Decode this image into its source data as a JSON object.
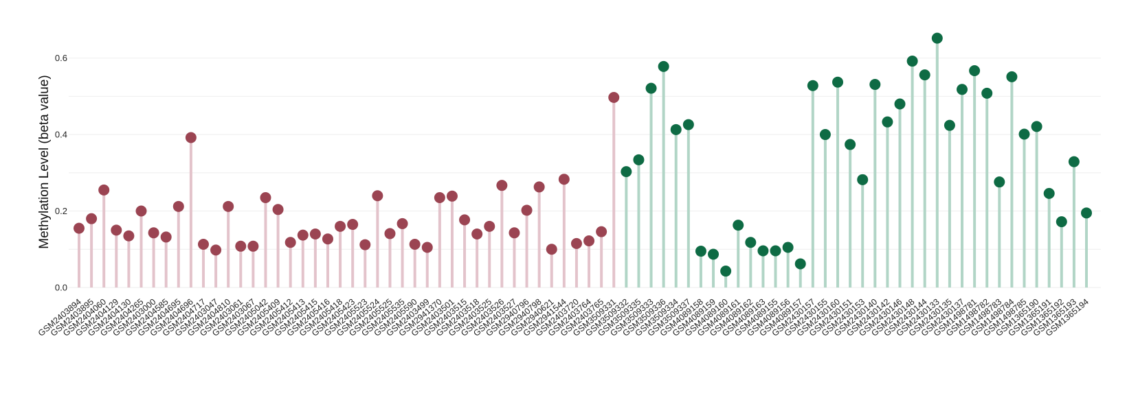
{
  "chart_data": {
    "type": "lollipop",
    "title": "",
    "xlabel": "",
    "ylabel": "Methylation Level (beta value)",
    "ylim": [
      0,
      0.68
    ],
    "yticks": [
      0.0,
      0.2,
      0.4,
      0.6
    ],
    "ytick_labels": [
      "0.0",
      "0.2",
      "0.4",
      "0.6"
    ],
    "grid": true,
    "legend": "none",
    "colors": {
      "group1_point": "#9b4452",
      "group1_stem": "#e3c3cb",
      "group2_point": "#0e6b44",
      "group2_stem": "#b1d5c6",
      "grid": "#eeeeee"
    },
    "group_boundary_index": 44,
    "categories": [
      "GSM2403894",
      "GSM2403895",
      "GSM2404060",
      "GSM2404129",
      "GSM2404130",
      "GSM2404265",
      "GSM2403000",
      "GSM2404585",
      "GSM2404695",
      "GSM2404696",
      "GSM2404717",
      "GSM2403047",
      "GSM2404810",
      "GSM2403061",
      "GSM2403067",
      "GSM2405042",
      "GSM2405409",
      "GSM2405412",
      "GSM2405413",
      "GSM2405415",
      "GSM2405416",
      "GSM2405418",
      "GSM2405423",
      "GSM2405523",
      "GSM2405524",
      "GSM2405525",
      "GSM2405535",
      "GSM2405590",
      "GSM2403499",
      "GSM2941370",
      "GSM2403501",
      "GSM2403515",
      "GSM2403518",
      "GSM2403525",
      "GSM2403526",
      "GSM2403527",
      "GSM2940796",
      "GSM2940798",
      "GSM2940621",
      "GSM2941544",
      "GSM2403720",
      "GSM2403764",
      "GSM2403765",
      "GSM3509331",
      "GSM3509332",
      "GSM3509335",
      "GSM3509333",
      "GSM3509336",
      "GSM3509334",
      "GSM3509337",
      "GSM4089158",
      "GSM4089159",
      "GSM4089160",
      "GSM4089161",
      "GSM4089162",
      "GSM4089163",
      "GSM4089155",
      "GSM4089156",
      "GSM4089157",
      "GSM2430157",
      "GSM2430155",
      "GSM2430160",
      "GSM2430151",
      "GSM2430153",
      "GSM2430140",
      "GSM2430142",
      "GSM2430146",
      "GSM2430148",
      "GSM2430144",
      "GSM2430133",
      "GSM2430135",
      "GSM2430137",
      "GSM1498781",
      "GSM1498782",
      "GSM1498783",
      "GSM1498784",
      "GSM1498785",
      "GSM1365190",
      "GSM1365191",
      "GSM1365192",
      "GSM1365193",
      "GSM1365194"
    ],
    "values": [
      0.155,
      0.18,
      0.255,
      0.15,
      0.135,
      0.2,
      0.143,
      0.132,
      0.212,
      0.392,
      0.113,
      0.098,
      0.212,
      0.108,
      0.108,
      0.235,
      0.204,
      0.118,
      0.137,
      0.14,
      0.127,
      0.16,
      0.165,
      0.112,
      0.24,
      0.141,
      0.167,
      0.113,
      0.105,
      0.235,
      0.239,
      0.177,
      0.14,
      0.16,
      0.267,
      0.143,
      0.202,
      0.263,
      0.1,
      0.283,
      0.115,
      0.122,
      0.146,
      0.497,
      0.303,
      0.334,
      0.521,
      0.578,
      0.413,
      0.426,
      0.095,
      0.087,
      0.043,
      0.163,
      0.118,
      0.096,
      0.096,
      0.105,
      0.062,
      0.528,
      0.4,
      0.537,
      0.374,
      0.282,
      0.531,
      0.433,
      0.48,
      0.592,
      0.556,
      0.652,
      0.424,
      0.518,
      0.567,
      0.508,
      0.276,
      0.551,
      0.401,
      0.421,
      0.246,
      0.172,
      0.329,
      0.195
    ]
  }
}
